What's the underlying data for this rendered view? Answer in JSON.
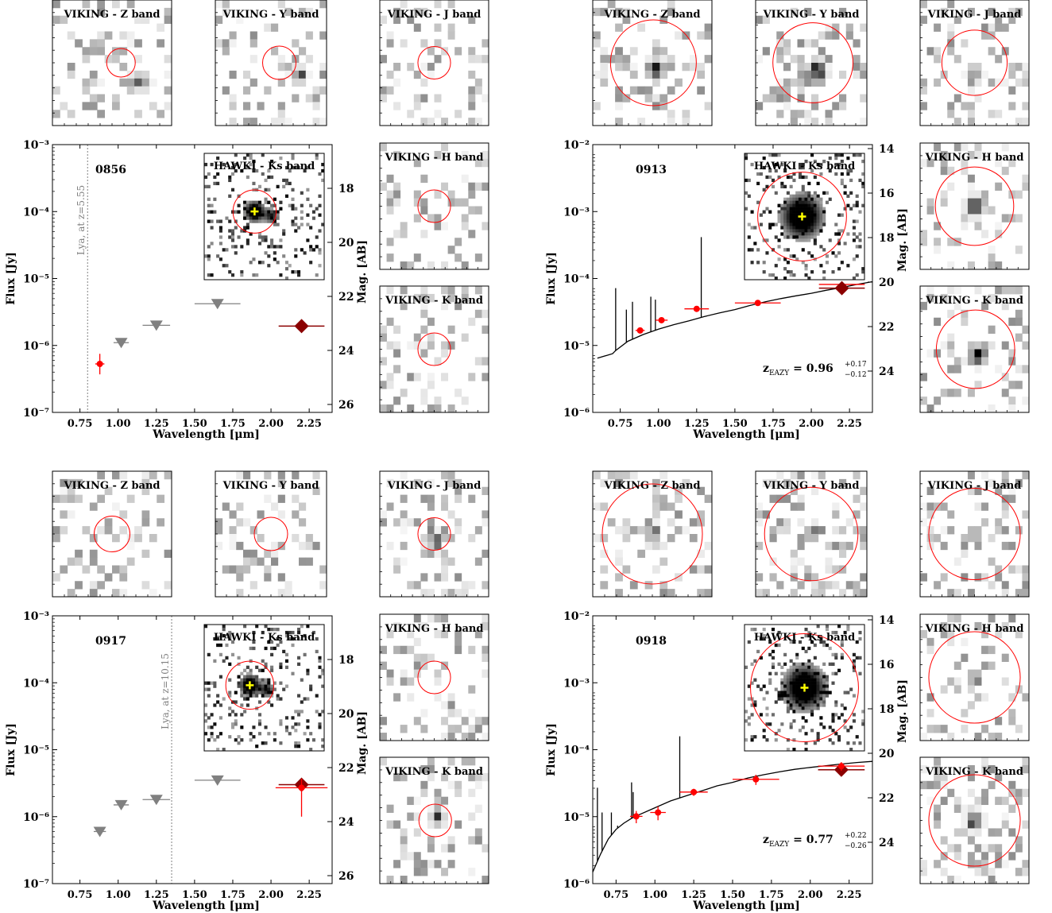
{
  "figure": {
    "panel_ids": [
      "0856",
      "0913",
      "0917",
      "0918"
    ]
  },
  "colors": {
    "detection": "#ff0000",
    "upper_limit": "#808080",
    "hawki_point": "#8b0000",
    "model": "#000000",
    "centroid": "#ffff00",
    "lya_line": "#808080"
  },
  "chart_data": [
    {
      "id": "0856",
      "type": "scatter",
      "label": "0856",
      "xlabel": "Wavelength [μm]",
      "ylabel": "Flux [Jy]",
      "ylabel2": "Mag. [AB]",
      "xlim": [
        0.57,
        2.4
      ],
      "ylim": [
        1e-07,
        0.001
      ],
      "y_scale": "log",
      "xticks": [
        "0.75",
        "1.00",
        "1.25",
        "1.50",
        "1.75",
        "2.00",
        "2.25"
      ],
      "yticks": [
        "10⁻⁷",
        "10⁻⁶",
        "10⁻⁵",
        "10⁻⁴",
        "10⁻³"
      ],
      "mag_ticks": [
        "18",
        "20",
        "22",
        "24",
        "26"
      ],
      "lya": {
        "x": 0.8,
        "text": "Lya, at z=5.55"
      },
      "detections": [
        {
          "x": 0.88,
          "y": 5.3e-07,
          "xerr": 0.03,
          "yerr_lo": 1.6e-07,
          "yerr_hi": 2.2e-07
        }
      ],
      "upper_limits": [
        {
          "x": 1.02,
          "y": 1.1e-06,
          "xerr": 0.05
        },
        {
          "x": 1.25,
          "y": 2e-06,
          "xerr": 0.09
        },
        {
          "x": 1.65,
          "y": 4.2e-06,
          "xerr": 0.15
        }
      ],
      "hawki": {
        "x": 2.2,
        "y": 1.95e-06,
        "xerr": 0.15
      },
      "inset": {
        "title": "HAWKI - Ks band",
        "circle_scale": 0.18,
        "source_scale": 0.12,
        "centroid": [
          0.42,
          0.46
        ]
      },
      "stamps": [
        {
          "title": "VIKING - Z band",
          "circle_scale": 0.12,
          "source": "weak",
          "offset": [
            0.25,
            0.15
          ]
        },
        {
          "title": "VIKING - Y band",
          "circle_scale": 0.15,
          "source": "weak",
          "offset": [
            0.25,
            0.1
          ]
        },
        {
          "title": "VIKING - J band",
          "circle_scale": 0.15,
          "source": "none",
          "offset": [
            0,
            0
          ]
        },
        {
          "title": "VIKING - H band",
          "circle_scale": 0.15,
          "source": "none",
          "offset": [
            0,
            0
          ]
        },
        {
          "title": "VIKING - K band",
          "circle_scale": 0.15,
          "source": "none",
          "offset": [
            0,
            0
          ]
        }
      ]
    },
    {
      "id": "0913",
      "type": "line",
      "label": "0913",
      "xlabel": "Wavelength [μm]",
      "ylabel": "Flux [Jy]",
      "ylabel2": "Mag. [AB]",
      "xlim": [
        0.57,
        2.4
      ],
      "ylim": [
        3.2e-07,
        0.01
      ],
      "y_scale": "log",
      "xticks": [
        "0.75",
        "1.00",
        "1.25",
        "1.50",
        "1.75",
        "2.00",
        "2.25"
      ],
      "yticks": [
        "10⁻⁶",
        "10⁻⁵",
        "10⁻⁴",
        "10⁻³",
        "10⁻²"
      ],
      "mag_ticks": [
        "14",
        "16",
        "18",
        "20",
        "22",
        "24"
      ],
      "redshift": {
        "prefix": "z",
        "sub": "EAZY",
        "value": " = 0.96",
        "sup": "+0.17",
        "subval": "−0.12"
      },
      "model": {
        "x": [
          0.6,
          0.7,
          0.72,
          0.8,
          0.9,
          1.0,
          1.1,
          1.2,
          1.3,
          1.4,
          1.5,
          1.6,
          1.7,
          1.8,
          1.9,
          2.0,
          2.1,
          2.2,
          2.3,
          2.4
        ],
        "y": [
          2.6e-06,
          3.1e-06,
          3.5e-06,
          5e-06,
          6.5e-06,
          8e-06,
          9.5e-06,
          1.1e-05,
          1.3e-05,
          1.5e-05,
          1.7e-05,
          2e-05,
          2.3e-05,
          2.6e-05,
          2.9e-05,
          3.2e-05,
          3.6e-05,
          4e-05,
          4.5e-05,
          5e-05
        ],
        "lines": [
          [
            0.72,
            3.9e-05
          ],
          [
            0.79,
            1.7e-05
          ],
          [
            0.83,
            2.3e-05
          ],
          [
            0.95,
            2.8e-05
          ],
          [
            0.98,
            2.5e-05
          ],
          [
            1.28,
            0.00028
          ]
        ]
      },
      "detections": [
        {
          "x": 0.88,
          "y": 7.6e-06,
          "xerr": 0.03,
          "yerr_lo": 7e-07,
          "yerr_hi": 7e-07
        },
        {
          "x": 1.02,
          "y": 1.13e-05,
          "xerr": 0.04,
          "yerr_lo": 9e-07,
          "yerr_hi": 9e-07
        },
        {
          "x": 1.25,
          "y": 1.75e-05,
          "xerr": 0.08,
          "yerr_lo": 1.2e-06,
          "yerr_hi": 1.2e-06
        },
        {
          "x": 1.65,
          "y": 2.2e-05,
          "xerr": 0.15,
          "yerr_lo": 1.4e-06,
          "yerr_hi": 1.4e-06
        }
      ],
      "upper_limits": [],
      "hawki": {
        "x": 2.2,
        "y": 3.9e-05,
        "xerr": 0.15
      },
      "hawki_overlay": {
        "x": 2.2,
        "y": 4.5e-05,
        "xerr": 0.15
      },
      "inset": {
        "title": "HAWKI - Ks band",
        "circle_scale": 0.37,
        "source_scale": 0.25,
        "centroid": [
          0.48,
          0.5
        ]
      },
      "stamps": [
        {
          "title": "VIKING - Z band",
          "circle_scale": 0.36,
          "source": "strong",
          "offset": [
            0.03,
            0.05
          ]
        },
        {
          "title": "VIKING - Y band",
          "circle_scale": 0.36,
          "source": "strong",
          "offset": [
            0.05,
            0.05
          ]
        },
        {
          "title": "VIKING - J band",
          "circle_scale": 0.3,
          "source": "weak",
          "offset": [
            0,
            0.08
          ]
        },
        {
          "title": "VIKING - H band",
          "circle_scale": 0.36,
          "source": "strong",
          "offset": [
            0,
            0
          ]
        },
        {
          "title": "VIKING - K band",
          "circle_scale": 0.36,
          "source": "strong",
          "offset": [
            0.03,
            0.05
          ]
        }
      ]
    },
    {
      "id": "0917",
      "type": "scatter",
      "label": "0917",
      "xlabel": "Wavelength [μm]",
      "ylabel": "Flux [Jy]",
      "ylabel2": "Mag. [AB]",
      "xlim": [
        0.57,
        2.4
      ],
      "ylim": [
        1e-07,
        0.001
      ],
      "y_scale": "log",
      "xticks": [
        "0.75",
        "1.00",
        "1.25",
        "1.50",
        "1.75",
        "2.00",
        "2.25"
      ],
      "yticks": [
        "10⁻⁷",
        "10⁻⁶",
        "10⁻⁵",
        "10⁻⁴",
        "10⁻³"
      ],
      "mag_ticks": [
        "18",
        "20",
        "22",
        "24",
        "26"
      ],
      "lya": {
        "x": 1.35,
        "text": "Lya, at z=10.15"
      },
      "detections": [
        {
          "x": 2.2,
          "y": 2.7e-06,
          "xerr": 0.17,
          "yerr_lo": 1.7e-06,
          "yerr_hi": 1e-06
        }
      ],
      "upper_limits": [
        {
          "x": 0.88,
          "y": 6e-07,
          "xerr": 0.04
        },
        {
          "x": 1.02,
          "y": 1.5e-06,
          "xerr": 0.05
        },
        {
          "x": 1.25,
          "y": 1.8e-06,
          "xerr": 0.09
        },
        {
          "x": 1.65,
          "y": 3.5e-06,
          "xerr": 0.15
        }
      ],
      "hawki": {
        "x": 2.2,
        "y": 3e-06,
        "xerr": 0.15
      },
      "inset": {
        "title": "HAWKI - Ks band",
        "circle_scale": 0.2,
        "source_scale": 0.12,
        "centroid": [
          0.38,
          0.48
        ]
      },
      "stamps": [
        {
          "title": "VIKING - Z band",
          "circle_scale": 0.15,
          "source": "none",
          "offset": [
            0,
            0
          ]
        },
        {
          "title": "VIKING - Y band",
          "circle_scale": 0.15,
          "source": "none",
          "offset": [
            0,
            0
          ]
        },
        {
          "title": "VIKING - J band",
          "circle_scale": 0.15,
          "source": "weak",
          "offset": [
            0,
            0.05
          ]
        },
        {
          "title": "VIKING - H band",
          "circle_scale": 0.15,
          "source": "none",
          "offset": [
            0,
            0
          ]
        },
        {
          "title": "VIKING - K band",
          "circle_scale": 0.15,
          "source": "weak",
          "offset": [
            0.03,
            -0.02
          ]
        }
      ]
    },
    {
      "id": "0918",
      "type": "line",
      "label": "0918",
      "xlabel": "Wavelength [μm]",
      "ylabel": "Flux [Jy]",
      "ylabel2": "Mag. [AB]",
      "xlim": [
        0.6,
        2.4
      ],
      "ylim": [
        3.2e-07,
        0.01
      ],
      "y_scale": "log",
      "xticks": [
        "0.75",
        "1.00",
        "1.25",
        "1.50",
        "1.75",
        "2.00",
        "2.25"
      ],
      "yticks": [
        "10⁻⁶",
        "10⁻⁵",
        "10⁻⁴",
        "10⁻³",
        "10⁻²"
      ],
      "mag_ticks": [
        "14",
        "16",
        "18",
        "20",
        "22",
        "24"
      ],
      "redshift": {
        "prefix": "z",
        "sub": "EAZY",
        "value": " = 0.77",
        "sup": "+0.22",
        "subval": "−0.26"
      },
      "model": {
        "x": [
          0.6,
          0.65,
          0.7,
          0.75,
          0.8,
          0.85,
          0.9,
          1.0,
          1.1,
          1.2,
          1.3,
          1.4,
          1.5,
          1.6,
          1.7,
          1.8,
          1.9,
          2.0,
          2.1,
          2.2,
          2.3,
          2.4
        ],
        "y": [
          5e-07,
          1e-06,
          1.8e-06,
          2.6e-06,
          3.3e-06,
          4e-06,
          4.6e-06,
          6e-06,
          7.8e-06,
          9.5e-06,
          1.15e-05,
          1.4e-05,
          1.6e-05,
          1.9e-05,
          2.15e-05,
          2.4e-05,
          2.65e-05,
          2.85e-05,
          3.05e-05,
          3.25e-05,
          3.45e-05,
          3.6e-05
        ],
        "lines": [
          [
            0.63,
            1.3e-05
          ],
          [
            0.66,
            5e-06
          ],
          [
            0.72,
            5e-06
          ],
          [
            0.76,
            3e-06
          ],
          [
            0.8,
            3.3e-06
          ],
          [
            0.85,
            1.6e-05
          ],
          [
            0.86,
            1.1e-05
          ],
          [
            1.16,
            9.5e-05
          ]
        ]
      },
      "detections": [
        {
          "x": 0.88,
          "y": 4.3e-06,
          "xerr": 0.04,
          "yerr_lo": 1e-06,
          "yerr_hi": 1e-06
        },
        {
          "x": 1.02,
          "y": 5e-06,
          "xerr": 0.05,
          "yerr_lo": 1.3e-06,
          "yerr_hi": 1.3e-06
        },
        {
          "x": 1.25,
          "y": 1.1e-05,
          "xerr": 0.09,
          "yerr_lo": 1.5e-06,
          "yerr_hi": 1.5e-06
        },
        {
          "x": 1.65,
          "y": 1.8e-05,
          "xerr": 0.15,
          "yerr_lo": 3.5e-06,
          "yerr_hi": 3.5e-06
        },
        {
          "x": 2.2,
          "y": 3e-05,
          "xerr": 0.15,
          "yerr_lo": 5e-06,
          "yerr_hi": 5e-06
        }
      ],
      "upper_limits": [],
      "hawki": {
        "x": 2.2,
        "y": 2.6e-05,
        "xerr": 0.15
      },
      "inset": {
        "title": "HAWKI - Ks band",
        "circle_scale": 0.45,
        "source_scale": 0.25,
        "centroid": [
          0.5,
          0.5
        ]
      },
      "stamps": [
        {
          "title": "VIKING - Z band",
          "circle_scale": 0.42,
          "source": "weak",
          "offset": [
            0,
            0
          ]
        },
        {
          "title": "VIKING - Y band",
          "circle_scale": 0.42,
          "source": "weak",
          "offset": [
            0,
            0
          ]
        },
        {
          "title": "VIKING - J band",
          "circle_scale": 0.42,
          "source": "weak",
          "offset": [
            0,
            0
          ]
        },
        {
          "title": "VIKING - H band",
          "circle_scale": 0.42,
          "source": "weak",
          "offset": [
            0,
            0
          ]
        },
        {
          "title": "VIKING - K band",
          "circle_scale": 0.42,
          "source": "medium",
          "offset": [
            0,
            0
          ]
        }
      ]
    }
  ]
}
